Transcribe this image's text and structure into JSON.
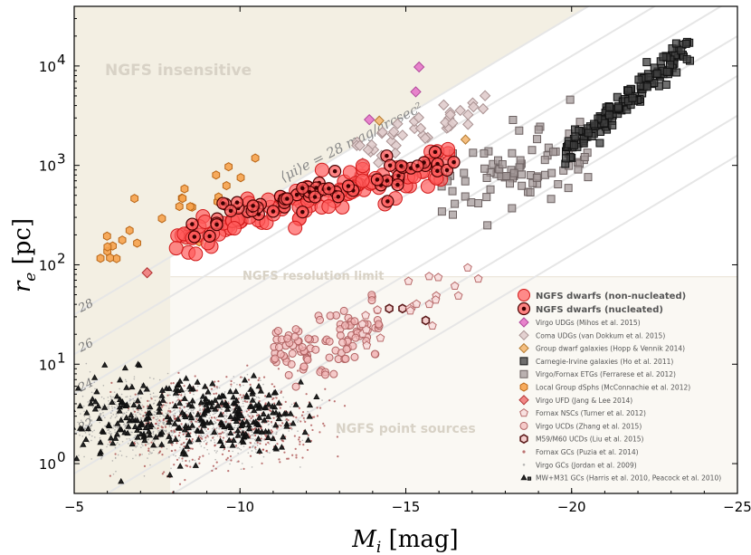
{
  "chart_data": {
    "type": "scatter",
    "title": "",
    "xlabel": "M_i [mag]",
    "ylabel": "r_e [pc]",
    "xlabel_parts": {
      "var": "M",
      "sub": "i",
      "unit": "[mag]"
    },
    "ylabel_parts": {
      "var": "r",
      "sub": "e",
      "unit": "[pc]"
    },
    "xlim": [
      -5,
      -25
    ],
    "ylim_log10": [
      -0.3,
      4.6
    ],
    "x_ticks": [
      {
        "value": -5,
        "label": "−5"
      },
      {
        "value": -10,
        "label": "−10"
      },
      {
        "value": -15,
        "label": "−15"
      },
      {
        "value": -20,
        "label": "−20"
      },
      {
        "value": -25,
        "label": "−25"
      }
    ],
    "y_ticks": [
      {
        "log": 0,
        "base": "10",
        "exp": "0"
      },
      {
        "log": 1,
        "base": "10",
        "exp": "1"
      },
      {
        "log": 2,
        "base": "10",
        "exp": "2"
      },
      {
        "log": 3,
        "base": "10",
        "exp": "3"
      },
      {
        "log": 4,
        "base": "10",
        "exp": "4"
      }
    ],
    "regions": {
      "insensitive": {
        "label": "NGFS insensitive",
        "color": "#f3efe3"
      },
      "resolution": {
        "label": "NGFS resolution limit",
        "color": "#faf8f3"
      },
      "point_sources": {
        "label": "NGFS point sources"
      }
    },
    "resolution_limit": {
      "x_edge": -7.9,
      "log_re": 1.88
    },
    "surface_brightness_lines": [
      {
        "mu": 28,
        "label": "28",
        "main_label": "⟨μi⟩e = 28 mag/arcsec²"
      },
      {
        "mu": 26,
        "label": "26"
      },
      {
        "mu": 24,
        "label": "24"
      },
      {
        "mu": 22,
        "label": "22"
      },
      {
        "mu": 20,
        "label": ""
      },
      {
        "mu": 18,
        "label": ""
      },
      {
        "mu": 16,
        "label": ""
      }
    ],
    "series": [
      {
        "name": "NGFS dwarfs (non-nucleated)",
        "marker": "circle",
        "color": "#ff5b5b",
        "edge": "#d21a1a",
        "size": 15,
        "n": 115,
        "seed": 11,
        "x_range": [
          -8.0,
          -16.3
        ],
        "log_center": [
          2.25,
          3.05
        ],
        "scatter": 0.1,
        "bold": true
      },
      {
        "name": "NGFS dwarfs (nucleated)",
        "marker": "circle-dot",
        "color": "#ff5b5b",
        "edge": "#4a0000",
        "size": 13,
        "n": 65,
        "seed": 12,
        "x_range": [
          -8.5,
          -16.5
        ],
        "log_center": [
          2.4,
          3.05
        ],
        "scatter": 0.08,
        "bold": true
      },
      {
        "name": "Virgo UDGs (Mihos et al. 2015)",
        "marker": "diamond",
        "color": "#e675c8",
        "edge": "#b0479a",
        "size": 11,
        "points": [
          [
            -13.9,
            3.46
          ],
          [
            -15.3,
            3.74
          ],
          [
            -15.4,
            3.99
          ]
        ]
      },
      {
        "name": "Coma UDGs (van Dokkum et al. 2015)",
        "marker": "diamond",
        "color": "#e0cccc",
        "edge": "#a89090",
        "size": 11,
        "n": 42,
        "seed": 13,
        "x_range": [
          -13.5,
          -17.4
        ],
        "log_center": [
          3.1,
          3.6
        ],
        "scatter": 0.09
      },
      {
        "name": "Group dwarf galaxies (Hopp & Vennik 2014)",
        "marker": "diamond",
        "color": "#f3b772",
        "edge": "#b47a30",
        "size": 10,
        "points": [
          [
            -16.8,
            3.26
          ],
          [
            -14.2,
            3.45
          ]
        ]
      },
      {
        "name": "Carnegie-Irvine galaxies (Ho et al. 2011)",
        "marker": "square",
        "color": "#3f3f3f",
        "edge": "#111111",
        "size": 10,
        "n": 150,
        "seed": 14,
        "x_range": [
          -19.8,
          -23.6
        ],
        "log_center": [
          3.15,
          4.2
        ],
        "scatter": 0.07
      },
      {
        "name": "Virgo/Fornax ETGs (Ferrarese et al. 2012)",
        "marker": "square",
        "color": "#a49999",
        "edge": "#6d6262",
        "size": 10,
        "n": 85,
        "seed": 15,
        "x_range": [
          -16.0,
          -20.5
        ],
        "log_center": [
          2.85,
          3.1
        ],
        "scatter": 0.18
      },
      {
        "name": "Local Group dSphs (McConnachie et al. 2012)",
        "marker": "hexagon",
        "color": "#f6a24d",
        "edge": "#b96515",
        "size": 9,
        "n": 26,
        "seed": 16,
        "x_range": [
          -5.6,
          -10.5
        ],
        "log_center": [
          2.05,
          2.95
        ],
        "scatter": 0.14
      },
      {
        "name": "Virgo UFD (Jang & Lee 2014)",
        "marker": "diamond",
        "color": "#ef7a7a",
        "edge": "#b03030",
        "size": 11,
        "points": [
          [
            -7.2,
            1.92
          ]
        ]
      },
      {
        "name": "Fornax NSCs (Turner et al. 2012)",
        "marker": "pentagon",
        "color": "#f8dede",
        "edge": "#b86a6a",
        "size": 9,
        "n": 22,
        "seed": 17,
        "x_range": [
          -13.5,
          -17.2
        ],
        "log_center": [
          1.35,
          1.95
        ],
        "scatter": 0.15
      },
      {
        "name": "Virgo UCDs (Zhang et al. 2015)",
        "marker": "circle",
        "color": "#f2b6b6",
        "edge": "#b06262",
        "size": 8,
        "n": 105,
        "seed": 18,
        "x_range": [
          -11.0,
          -14.2
        ],
        "log_center": [
          1.05,
          1.45
        ],
        "scatter": 0.15
      },
      {
        "name": "M59/M60 UCDs (Liu et al. 2015)",
        "marker": "hexagon-open",
        "color": "#f3c9c9",
        "edge": "#5c1a1a",
        "size": 9,
        "points": [
          [
            -14.5,
            1.56
          ],
          [
            -14.9,
            1.56
          ],
          [
            -15.6,
            1.44
          ]
        ]
      },
      {
        "name": "Fornax GCs (Puzia et al. 2014)",
        "marker": "dot",
        "color": "#a13a3a",
        "edge": "#a13a3a",
        "size": 2.2,
        "n": 450,
        "seed": 19,
        "x_range": [
          -7.0,
          -12.0
        ],
        "log_center": [
          0.35,
          0.45
        ],
        "scatter": 0.22
      },
      {
        "name": "Virgo GCs (Jordan et al. 2009)",
        "marker": "dot",
        "color": "#9a9a9a",
        "edge": "#9a9a9a",
        "size": 1.6,
        "n": 1100,
        "seed": 20,
        "x_range": [
          -5.6,
          -10.8
        ],
        "log_center": [
          0.42,
          0.42
        ],
        "scatter": 0.18
      },
      {
        "name": "MW+M31 GCs (Harris et al. 2010, Peacock et al. 2010)",
        "marker": "triangle",
        "color": "#111111",
        "edge": "#111111",
        "size": 5.5,
        "n": 320,
        "seed": 21,
        "x_range": [
          -5.2,
          -11.5
        ],
        "log_center": [
          0.45,
          0.45
        ],
        "scatter": 0.2
      }
    ]
  }
}
